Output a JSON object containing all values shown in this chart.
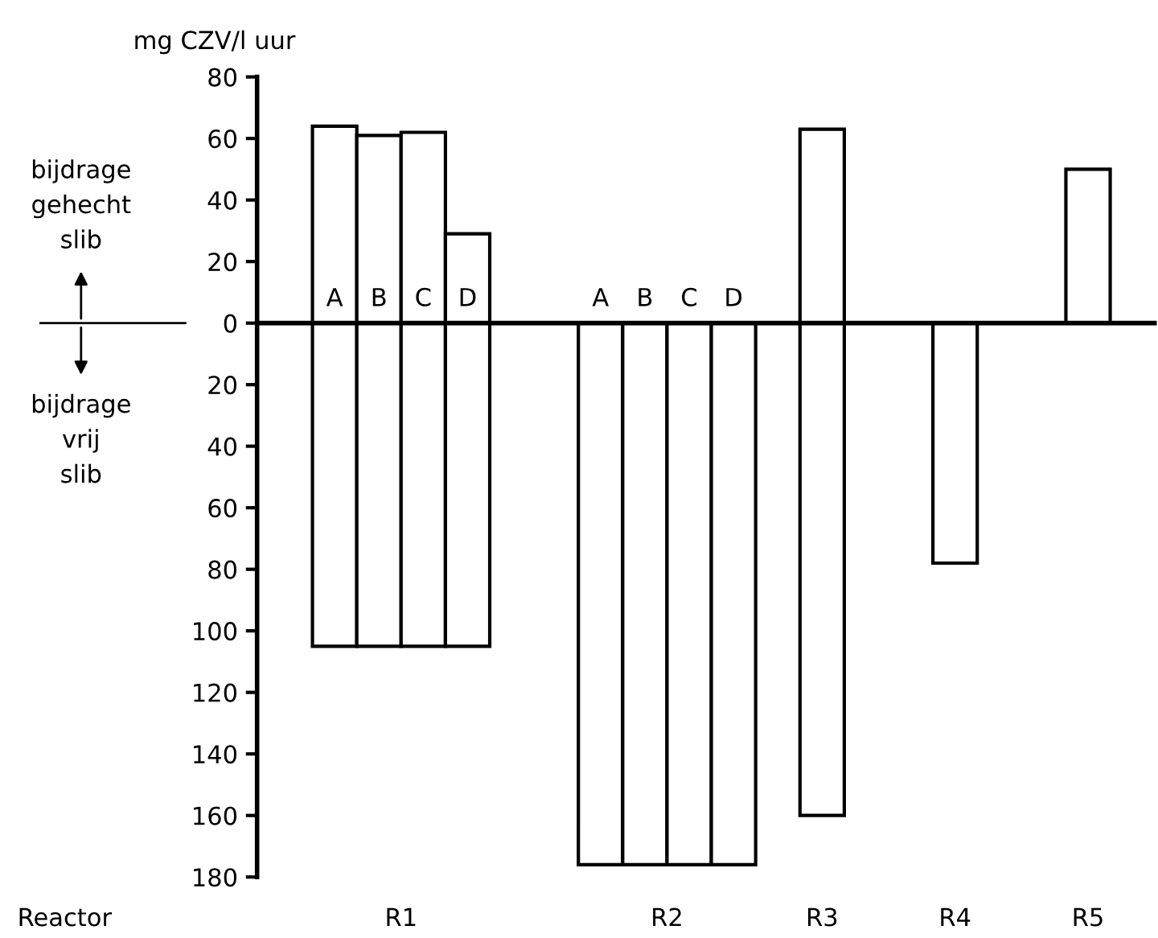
{
  "chart_data": {
    "type": "bar",
    "ylabel": "mg CZV/l uur",
    "categories": [
      "A",
      "B",
      "C",
      "D",
      null,
      null,
      "A",
      "B",
      "C",
      "D",
      null,
      null,
      null,
      null,
      null,
      null,
      null,
      null,
      null
    ],
    "series": [
      {
        "color": "#ffffff",
        "values": [
          64,
          61,
          62,
          29,
          null,
          null,
          null,
          null,
          null,
          null,
          null,
          63,
          null,
          null,
          null,
          null,
          null,
          50,
          null
        ]
      },
      {
        "color": "#ffffff",
        "values": [
          -105,
          -105,
          -105,
          -105,
          null,
          null,
          -176,
          -176,
          -176,
          -176,
          null,
          -160,
          null,
          null,
          -78,
          null,
          null,
          null,
          null
        ]
      }
    ],
    "ylim": [
      -180,
      80
    ],
    "yticks": [
      {
        "value": -180,
        "label": "180"
      },
      {
        "value": -160,
        "label": "160"
      },
      {
        "value": -140,
        "label": "140"
      },
      {
        "value": -120,
        "label": "120"
      },
      {
        "value": -100,
        "label": "100"
      },
      {
        "value": -80,
        "label": "80"
      },
      {
        "value": -60,
        "label": "60"
      },
      {
        "value": -40,
        "label": "40"
      },
      {
        "value": -20,
        "label": "20"
      },
      0,
      20,
      40,
      60,
      80
    ],
    "annotations": [
      "bijdrage\ngehecht\nslib",
      "bijdrage\nvrij\nslib",
      "Reactor",
      "R1",
      "R2",
      "R3",
      "R4",
      "R5"
    ],
    "grid": false,
    "legend": false
  }
}
